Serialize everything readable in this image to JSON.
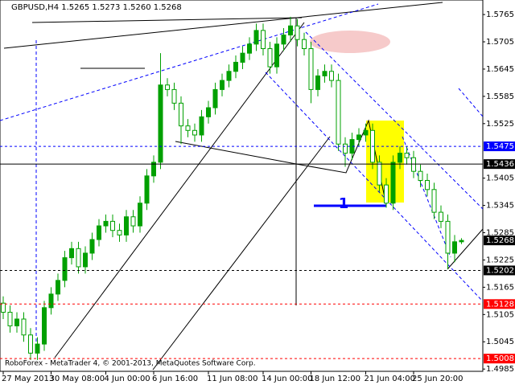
{
  "chart_data": {
    "type": "candlestick",
    "title": "GBPUSD,H4  1.5265 1.5273 1.5260 1.5268",
    "footer": "RoboForex - MetaTrader 4, © 2001-2013, MetaQuotes Software Corp.",
    "annotations": [
      "1"
    ],
    "categories": [
      "27 May 2013",
      null,
      null,
      null,
      null,
      null,
      null,
      "30 May 08:00",
      null,
      null,
      null,
      null,
      null,
      null,
      null,
      "4 Jun 00:00",
      null,
      null,
      null,
      null,
      null,
      null,
      "6 Jun 16:00",
      null,
      null,
      null,
      null,
      null,
      null,
      null,
      "11 Jun 08:00",
      null,
      null,
      null,
      null,
      null,
      null,
      null,
      "14 Jun 00:00",
      null,
      null,
      null,
      null,
      null,
      null,
      "18 Jun 12:00",
      null,
      null,
      null,
      null,
      null,
      null,
      null,
      "21 Jun 04:00",
      null,
      null,
      null,
      null,
      null,
      null,
      "25 Jun 20:00",
      null,
      null,
      null,
      null,
      null,
      null,
      null
    ],
    "open": [
      1.513,
      1.511,
      1.508,
      1.5095,
      1.506,
      1.502,
      1.504,
      1.512,
      1.515,
      1.518,
      1.523,
      1.525,
      1.521,
      1.524,
      1.527,
      1.53,
      1.531,
      1.529,
      1.528,
      1.532,
      1.53,
      1.535,
      1.541,
      1.544,
      1.561,
      1.56,
      1.557,
      1.552,
      1.551,
      1.55,
      1.554,
      1.556,
      1.56,
      1.562,
      1.564,
      1.566,
      1.568,
      1.57,
      1.573,
      1.569,
      1.565,
      1.57,
      1.572,
      1.574,
      1.571,
      1.569,
      1.56,
      1.563,
      1.564,
      1.562,
      1.548,
      1.546,
      1.549,
      1.55,
      1.551,
      1.544,
      1.539,
      1.535,
      1.544,
      1.546,
      1.545,
      1.542,
      1.54,
      1.538,
      1.533,
      1.531,
      1.524,
      1.5265
    ],
    "high": [
      1.5145,
      1.5125,
      1.511,
      1.511,
      1.5075,
      1.5055,
      1.5135,
      1.5165,
      1.5195,
      1.5245,
      1.5265,
      1.5265,
      1.5255,
      1.5285,
      1.5315,
      1.5325,
      1.5325,
      1.5305,
      1.5335,
      1.5335,
      1.5365,
      1.5425,
      1.5455,
      1.568,
      1.5625,
      1.5615,
      1.5585,
      1.5535,
      1.5525,
      1.5555,
      1.5575,
      1.5615,
      1.5635,
      1.5655,
      1.5675,
      1.5695,
      1.5715,
      1.5745,
      1.5745,
      1.5705,
      1.5715,
      1.5735,
      1.576,
      1.5755,
      1.5725,
      1.5705,
      1.5645,
      1.5655,
      1.5655,
      1.5635,
      1.5495,
      1.5505,
      1.5515,
      1.5525,
      1.5525,
      1.5455,
      1.5405,
      1.5455,
      1.5475,
      1.5475,
      1.5465,
      1.5435,
      1.5415,
      1.5395,
      1.5345,
      1.5325,
      1.528,
      1.5273
    ],
    "low": [
      1.5095,
      1.5065,
      1.5065,
      1.5045,
      1.5005,
      1.5005,
      1.5025,
      1.5105,
      1.5135,
      1.5165,
      1.5215,
      1.5195,
      1.5195,
      1.5225,
      1.5255,
      1.5285,
      1.5275,
      1.5265,
      1.5265,
      1.5285,
      1.5285,
      1.5335,
      1.5395,
      1.5425,
      1.5585,
      1.5555,
      1.548,
      1.5495,
      1.5485,
      1.5485,
      1.5525,
      1.5545,
      1.5585,
      1.5605,
      1.5625,
      1.5645,
      1.5665,
      1.5685,
      1.5675,
      1.5635,
      1.5635,
      1.5685,
      1.5705,
      1.5695,
      1.5675,
      1.557,
      1.5585,
      1.5615,
      1.5605,
      1.5465,
      1.543,
      1.5445,
      1.5475,
      1.5485,
      1.5425,
      1.5375,
      1.534,
      1.5335,
      1.5425,
      1.5435,
      1.5405,
      1.5385,
      1.5365,
      1.5315,
      1.5295,
      1.5205,
      1.522,
      1.526
    ],
    "close": [
      1.511,
      1.508,
      1.5095,
      1.506,
      1.502,
      1.504,
      1.512,
      1.515,
      1.518,
      1.523,
      1.525,
      1.521,
      1.524,
      1.527,
      1.53,
      1.531,
      1.529,
      1.528,
      1.532,
      1.53,
      1.535,
      1.541,
      1.544,
      1.561,
      1.56,
      1.557,
      1.552,
      1.551,
      1.55,
      1.554,
      1.556,
      1.56,
      1.562,
      1.564,
      1.566,
      1.568,
      1.57,
      1.573,
      1.569,
      1.565,
      1.57,
      1.572,
      1.574,
      1.571,
      1.569,
      1.56,
      1.563,
      1.564,
      1.562,
      1.548,
      1.546,
      1.549,
      1.55,
      1.551,
      1.544,
      1.539,
      1.535,
      1.544,
      1.546,
      1.545,
      1.542,
      1.54,
      1.538,
      1.533,
      1.531,
      1.524,
      1.5265,
      1.5268
    ],
    "up_color": "#00a000",
    "down_color": "#00a000",
    "ylim": [
      1.498,
      1.5797
    ],
    "yticks": [
      1.5765,
      1.5705,
      1.5645,
      1.5585,
      1.5525,
      1.5405,
      1.5345,
      1.5285,
      1.5225,
      1.5165,
      1.5105,
      1.5045,
      1.4985
    ],
    "levels": [
      {
        "value": 1.5475,
        "color": "#0000ff",
        "style": "dashed"
      },
      {
        "value": 1.5436,
        "color": "#000000",
        "style": "solid"
      },
      {
        "value": 1.5268,
        "color": "#000000",
        "style": "none"
      },
      {
        "value": 1.5202,
        "color": "#000000",
        "style": "dashed"
      },
      {
        "value": 1.5128,
        "color": "#ff0000",
        "style": "dashed"
      },
      {
        "value": 1.5008,
        "color": "#ff0000",
        "style": "dashed"
      }
    ]
  }
}
